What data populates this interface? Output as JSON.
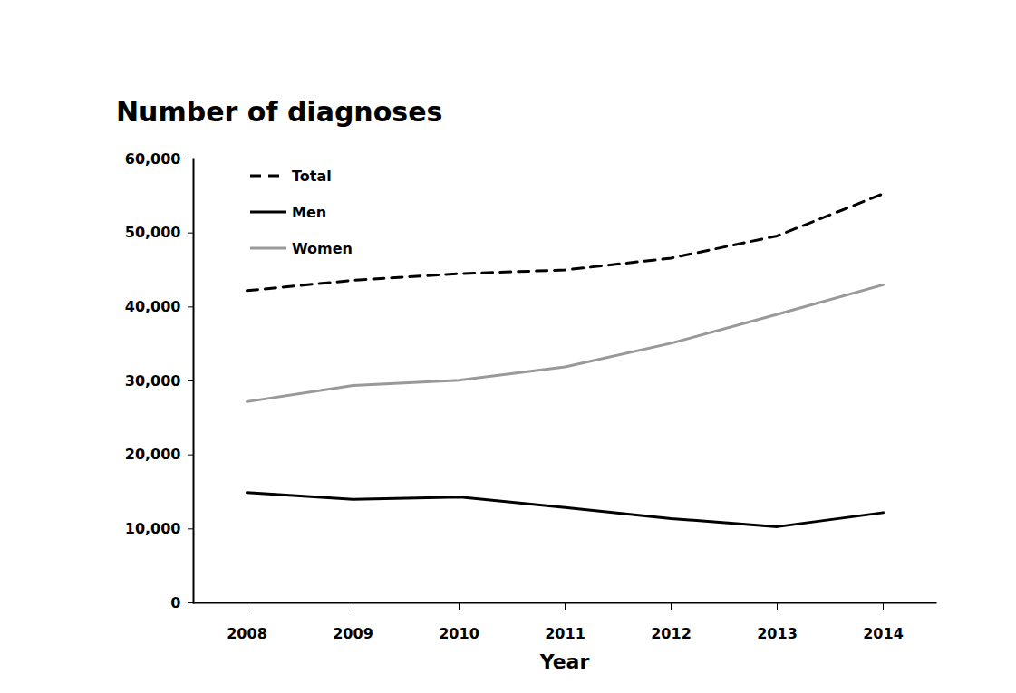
{
  "chart_data": {
    "type": "line",
    "title": "Number of diagnoses",
    "x_label": "Year",
    "categories": [
      "2008",
      "2009",
      "2010",
      "2011",
      "2012",
      "2013",
      "2014"
    ],
    "series": [
      {
        "name": "Total",
        "color": "#000000",
        "line_style": "dashed",
        "values": [
          42200,
          43600,
          44500,
          45000,
          46600,
          49600,
          55300
        ]
      },
      {
        "name": "Men",
        "color": "#000000",
        "line_style": "solid",
        "values": [
          14900,
          14000,
          14300,
          12900,
          11400,
          10300,
          12200
        ]
      },
      {
        "name": "Women",
        "color": "#999999",
        "line_style": "solid",
        "values": [
          27200,
          29400,
          30100,
          31900,
          35100,
          39000,
          43000
        ]
      }
    ],
    "ylim": [
      0,
      60000
    ],
    "yticks": [
      0,
      {
        "value": 10000,
        "label": "10,000"
      },
      {
        "value": 20000,
        "label": "20,000"
      },
      {
        "value": 30000,
        "label": "30,000"
      },
      {
        "value": 40000,
        "label": "40,000"
      },
      {
        "value": 50000,
        "label": "50,000"
      },
      {
        "value": 60000,
        "label": "60,000"
      }
    ],
    "grid": false,
    "legend": "top-left"
  }
}
